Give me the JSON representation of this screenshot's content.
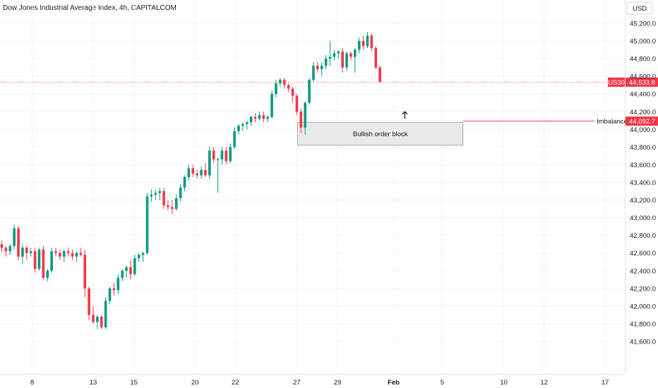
{
  "chart_data": {
    "type": "candlestick",
    "title": "Dow Jones Industrial Average Index, 4h, CAPITALCOM",
    "currency": "USD",
    "symbol": "US30",
    "ylim": [
      41400,
      45350
    ],
    "y_ticks": [
      "45,200.0",
      "45,000.0",
      "44,800.0",
      "44,600.0",
      "44,400.0",
      "44,200.0",
      "44,000.0",
      "43,800.0",
      "43,600.0",
      "43,400.0",
      "43,200.0",
      "43,000.0",
      "42,800.0",
      "42,600.0",
      "42,400.0",
      "42,200.0",
      "42,000.0",
      "41,800.0",
      "41,600.0"
    ],
    "y_tick_values": [
      45200,
      45000,
      44800,
      44600,
      44400,
      44200,
      44000,
      43800,
      43600,
      43400,
      43200,
      43000,
      42800,
      42600,
      42400,
      42200,
      42000,
      41800,
      41600
    ],
    "x_ticks": [
      {
        "label": "8",
        "bar": 7.3,
        "bold": false
      },
      {
        "label": "13",
        "bar": 22.0,
        "bold": false
      },
      {
        "label": "15",
        "bar": 31.8,
        "bold": false
      },
      {
        "label": "20",
        "bar": 46.5,
        "bold": false
      },
      {
        "label": "22",
        "bar": 56.2,
        "bold": false
      },
      {
        "label": "27",
        "bar": 71.0,
        "bold": false
      },
      {
        "label": "29",
        "bar": 80.8,
        "bold": false
      },
      {
        "label": "Feb",
        "bar": 94.3,
        "bold": true
      },
      {
        "label": "5",
        "bar": 106.0,
        "bold": false
      },
      {
        "label": "10",
        "bar": 120.8,
        "bold": false
      },
      {
        "label": "12",
        "bar": 130.5,
        "bold": false
      },
      {
        "label": "17",
        "bar": 145.2,
        "bold": false
      }
    ],
    "last_price": {
      "label": "44,533.8",
      "value": 44533.8
    },
    "imbalance": {
      "label": "Imbalance",
      "price_label": "44,092.7",
      "value": 44092.7
    },
    "order_block": {
      "label": "Bullish order block",
      "top": 44080,
      "bottom": 43820,
      "start_bar": 71.2,
      "end_bar": 111.0
    },
    "arrow": {
      "bar": 97.0,
      "value": 44160
    },
    "up_color": "#089981",
    "down_color": "#f23645",
    "candles": [
      [
        42700,
        42740,
        42610,
        42660
      ],
      [
        42660,
        42680,
        42560,
        42620
      ],
      [
        42620,
        42700,
        42580,
        42680
      ],
      [
        42680,
        42920,
        42640,
        42880
      ],
      [
        42880,
        42900,
        42520,
        42560
      ],
      [
        42560,
        42700,
        42480,
        42660
      ],
      [
        42660,
        42680,
        42520,
        42600
      ],
      [
        42600,
        42660,
        42560,
        42620
      ],
      [
        42620,
        42660,
        42380,
        42420
      ],
      [
        42420,
        42660,
        42400,
        42640
      ],
      [
        42640,
        42680,
        42300,
        42320
      ],
      [
        42320,
        42420,
        42280,
        42400
      ],
      [
        42400,
        42660,
        42380,
        42620
      ],
      [
        42620,
        42660,
        42560,
        42600
      ],
      [
        42600,
        42640,
        42520,
        42560
      ],
      [
        42560,
        42640,
        42500,
        42620
      ],
      [
        42620,
        42660,
        42560,
        42600
      ],
      [
        42600,
        42640,
        42520,
        42560
      ],
      [
        42560,
        42620,
        42500,
        42600
      ],
      [
        42600,
        42660,
        42560,
        42580
      ],
      [
        42580,
        42640,
        42100,
        42200
      ],
      [
        42200,
        42220,
        41840,
        41900
      ],
      [
        41900,
        42000,
        41800,
        41820
      ],
      [
        41820,
        41900,
        41740,
        41880
      ],
      [
        41880,
        41900,
        41740,
        41760
      ],
      [
        41760,
        42100,
        41740,
        42060
      ],
      [
        42060,
        42220,
        42020,
        42200
      ],
      [
        42200,
        42260,
        42120,
        42180
      ],
      [
        42180,
        42360,
        42140,
        42320
      ],
      [
        42320,
        42420,
        42280,
        42400
      ],
      [
        42400,
        42460,
        42320,
        42440
      ],
      [
        42440,
        42520,
        42300,
        42360
      ],
      [
        42360,
        42580,
        42340,
        42540
      ],
      [
        42540,
        42600,
        42500,
        42580
      ],
      [
        42580,
        42620,
        42500,
        42600
      ],
      [
        42600,
        43280,
        42580,
        43240
      ],
      [
        43240,
        43320,
        43180,
        43260
      ],
      [
        43260,
        43320,
        43200,
        43280
      ],
      [
        43280,
        43340,
        43200,
        43300
      ],
      [
        43300,
        43340,
        43100,
        43140
      ],
      [
        43140,
        43200,
        43080,
        43120
      ],
      [
        43120,
        43200,
        43040,
        43100
      ],
      [
        43100,
        43260,
        43080,
        43220
      ],
      [
        43220,
        43380,
        43180,
        43340
      ],
      [
        43340,
        43480,
        43300,
        43460
      ],
      [
        43460,
        43600,
        43420,
        43560
      ],
      [
        43560,
        43600,
        43460,
        43500
      ],
      [
        43500,
        43540,
        43440,
        43480
      ],
      [
        43480,
        43580,
        43440,
        43540
      ],
      [
        43540,
        43620,
        43460,
        43480
      ],
      [
        43480,
        43800,
        43440,
        43760
      ],
      [
        43760,
        43800,
        43620,
        43660
      ],
      [
        43660,
        43680,
        43280,
        43660
      ],
      [
        43660,
        43800,
        43600,
        43760
      ],
      [
        43760,
        43800,
        43600,
        43640
      ],
      [
        43640,
        43840,
        43620,
        43800
      ],
      [
        43800,
        44020,
        43780,
        43980
      ],
      [
        43980,
        44060,
        43940,
        44040
      ],
      [
        44040,
        44080,
        43980,
        44060
      ],
      [
        44060,
        44100,
        44000,
        44080
      ],
      [
        44080,
        44160,
        44040,
        44140
      ],
      [
        44140,
        44180,
        44080,
        44120
      ],
      [
        44120,
        44200,
        44100,
        44160
      ],
      [
        44160,
        44200,
        44080,
        44120
      ],
      [
        44120,
        44160,
        44080,
        44140
      ],
      [
        44140,
        44440,
        44120,
        44400
      ],
      [
        44400,
        44560,
        44360,
        44520
      ],
      [
        44520,
        44580,
        44480,
        44560
      ],
      [
        44560,
        44580,
        44460,
        44500
      ],
      [
        44500,
        44520,
        44420,
        44460
      ],
      [
        44460,
        44480,
        44300,
        44380
      ],
      [
        44380,
        44400,
        44160,
        44200
      ],
      [
        44200,
        44240,
        43960,
        44020
      ],
      [
        44020,
        44320,
        43940,
        44300
      ],
      [
        44300,
        44580,
        44280,
        44560
      ],
      [
        44560,
        44760,
        44540,
        44720
      ],
      [
        44720,
        44760,
        44640,
        44680
      ],
      [
        44680,
        44760,
        44600,
        44720
      ],
      [
        44720,
        44840,
        44680,
        44800
      ],
      [
        44800,
        45000,
        44720,
        44820
      ],
      [
        44820,
        44900,
        44780,
        44860
      ],
      [
        44860,
        44900,
        44800,
        44880
      ],
      [
        44880,
        44920,
        44640,
        44700
      ],
      [
        44700,
        44880,
        44660,
        44860
      ],
      [
        44860,
        44880,
        44780,
        44820
      ],
      [
        44820,
        44920,
        44640,
        44900
      ],
      [
        44900,
        45040,
        44860,
        45000
      ],
      [
        45000,
        45060,
        44900,
        44940
      ],
      [
        44940,
        45100,
        44920,
        45060
      ],
      [
        45060,
        45080,
        44880,
        44920
      ],
      [
        44920,
        44940,
        44680,
        44700
      ],
      [
        44700,
        44720,
        44540,
        44533.8
      ]
    ]
  }
}
